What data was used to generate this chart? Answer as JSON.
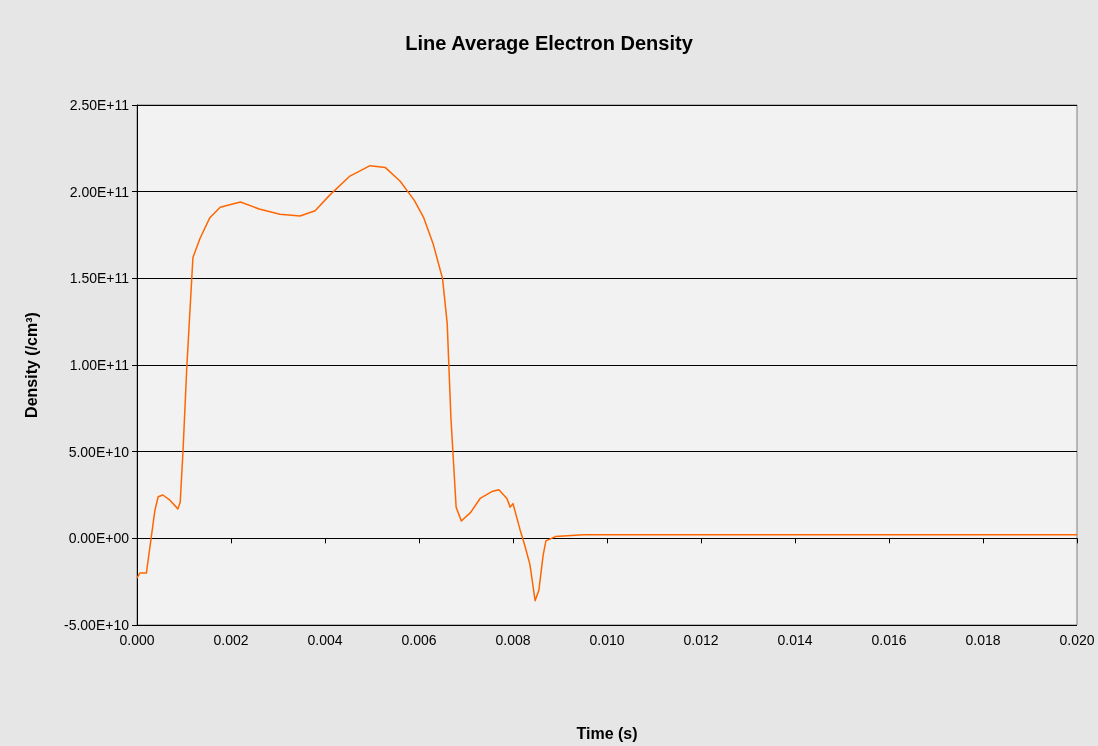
{
  "chart_data": {
    "type": "line",
    "title": "Line Average Electron Density",
    "xlabel": "Time (s)",
    "ylabel": "Density (/cm³)",
    "x": [
      0,
      6e-05,
      0.0002,
      0.0003,
      0.00038,
      0.00045,
      0.00055,
      0.0007,
      0.00087,
      0.00092,
      0.00098,
      0.00106,
      0.00119,
      0.00134,
      0.00155,
      0.00177,
      0.0022,
      0.0026,
      0.00304,
      0.00347,
      0.00379,
      0.0041,
      0.00453,
      0.00496,
      0.00528,
      0.0056,
      0.0059,
      0.0061,
      0.0063,
      0.0065,
      0.0066,
      0.00668,
      0.00679,
      0.0069,
      0.0071,
      0.0073,
      0.00755,
      0.0077,
      0.00787,
      0.00794,
      0.008,
      0.00815,
      0.00826,
      0.00836,
      0.00847,
      0.00855,
      0.00864,
      0.0087,
      0.0089,
      0.0095,
      0.0105,
      0.0115,
      0.0125,
      0.0135,
      0.0145,
      0.0155,
      0.0165,
      0.0175,
      0.0185,
      0.0195,
      0.02
    ],
    "series": [
      {
        "color": "#ff6600",
        "values": [
          -23000000000,
          -20000000000,
          -20000000000,
          0,
          16000000000,
          24000000000,
          25000000000,
          22000000000,
          17000000000,
          21000000000,
          51000000000,
          99000000000,
          162000000000,
          173000000000,
          185000000000,
          191000000000,
          194000000000,
          190000000000,
          187000000000,
          186000000000,
          189000000000,
          198000000000,
          209000000000,
          215000000000,
          214000000000,
          206000000000,
          195000000000,
          185000000000,
          170000000000,
          150000000000,
          124000000000,
          69000000000,
          18000000000,
          10000000000,
          15000000000,
          23000000000,
          27000000000,
          28000000000,
          23000000000,
          18000000000,
          20000000000,
          5000000000,
          -5000000000,
          -15000000000,
          -36000000000,
          -30000000000,
          -10000000000,
          -1500000000,
          1000000000,
          2000000000,
          2000000000,
          2000000000,
          2000000000,
          2000000000,
          2000000000,
          2000000000,
          2000000000,
          2000000000,
          2000000000,
          2000000000,
          2000000000
        ]
      }
    ],
    "xlim": [
      0,
      0.02
    ],
    "xticks": [
      {
        "value": 0,
        "label": "0.000"
      },
      {
        "value": 0.002,
        "label": "0.002"
      },
      {
        "value": 0.004,
        "label": "0.004"
      },
      {
        "value": 0.006,
        "label": "0.006"
      },
      {
        "value": 0.008,
        "label": "0.008"
      },
      {
        "value": 0.01,
        "label": "0.010"
      },
      {
        "value": 0.012,
        "label": "0.012"
      },
      {
        "value": 0.014,
        "label": "0.014"
      },
      {
        "value": 0.016,
        "label": "0.016"
      },
      {
        "value": 0.018,
        "label": "0.018"
      },
      {
        "value": 0.02,
        "label": "0.020"
      }
    ],
    "ylim": [
      -50000000000,
      250000000000
    ],
    "yticks": [
      {
        "value": -50000000000,
        "label": "-5.00E+10"
      },
      {
        "value": 0,
        "label": "0.00E+00"
      },
      {
        "value": 50000000000,
        "label": "5.00E+10"
      },
      {
        "value": 100000000000,
        "label": "1.00E+11"
      },
      {
        "value": 150000000000,
        "label": "1.50E+11"
      },
      {
        "value": 200000000000,
        "label": "2.00E+11"
      },
      {
        "value": 250000000000,
        "label": "2.50E+11"
      }
    ],
    "grid": "y",
    "marker": "none",
    "line_style": "solid"
  }
}
